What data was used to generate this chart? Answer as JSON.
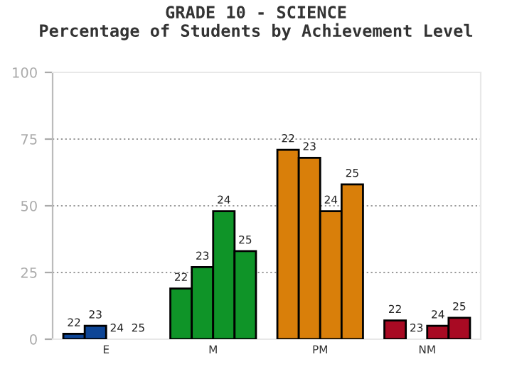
{
  "chart_data": {
    "type": "bar",
    "title": "GRADE 10 - SCIENCE\nPercentage of Students by Achievement Level",
    "categories": [
      "E",
      "M",
      "PM",
      "NM"
    ],
    "series": [
      {
        "name": "22",
        "colors": [
          "#0d4596",
          "#0f9428",
          "#d97f0a",
          "#a80a23"
        ],
        "values": [
          2,
          19,
          71,
          7
        ]
      },
      {
        "name": "23",
        "colors": [
          "#0d4596",
          "#0f9428",
          "#d97f0a",
          "#a80a23"
        ],
        "values": [
          5,
          27,
          68,
          0
        ]
      },
      {
        "name": "24",
        "colors": [
          "#0d4596",
          "#0f9428",
          "#d97f0a",
          "#a80a23"
        ],
        "values": [
          0,
          48,
          48,
          5
        ]
      },
      {
        "name": "25",
        "colors": [
          "#0d4596",
          "#0f9428",
          "#d97f0a",
          "#a80a23"
        ],
        "values": [
          0,
          33,
          58,
          8
        ]
      }
    ],
    "ylim": [
      0,
      100
    ],
    "yticks": [
      0,
      25,
      50,
      75,
      100
    ],
    "grid": "y",
    "legend": false
  }
}
